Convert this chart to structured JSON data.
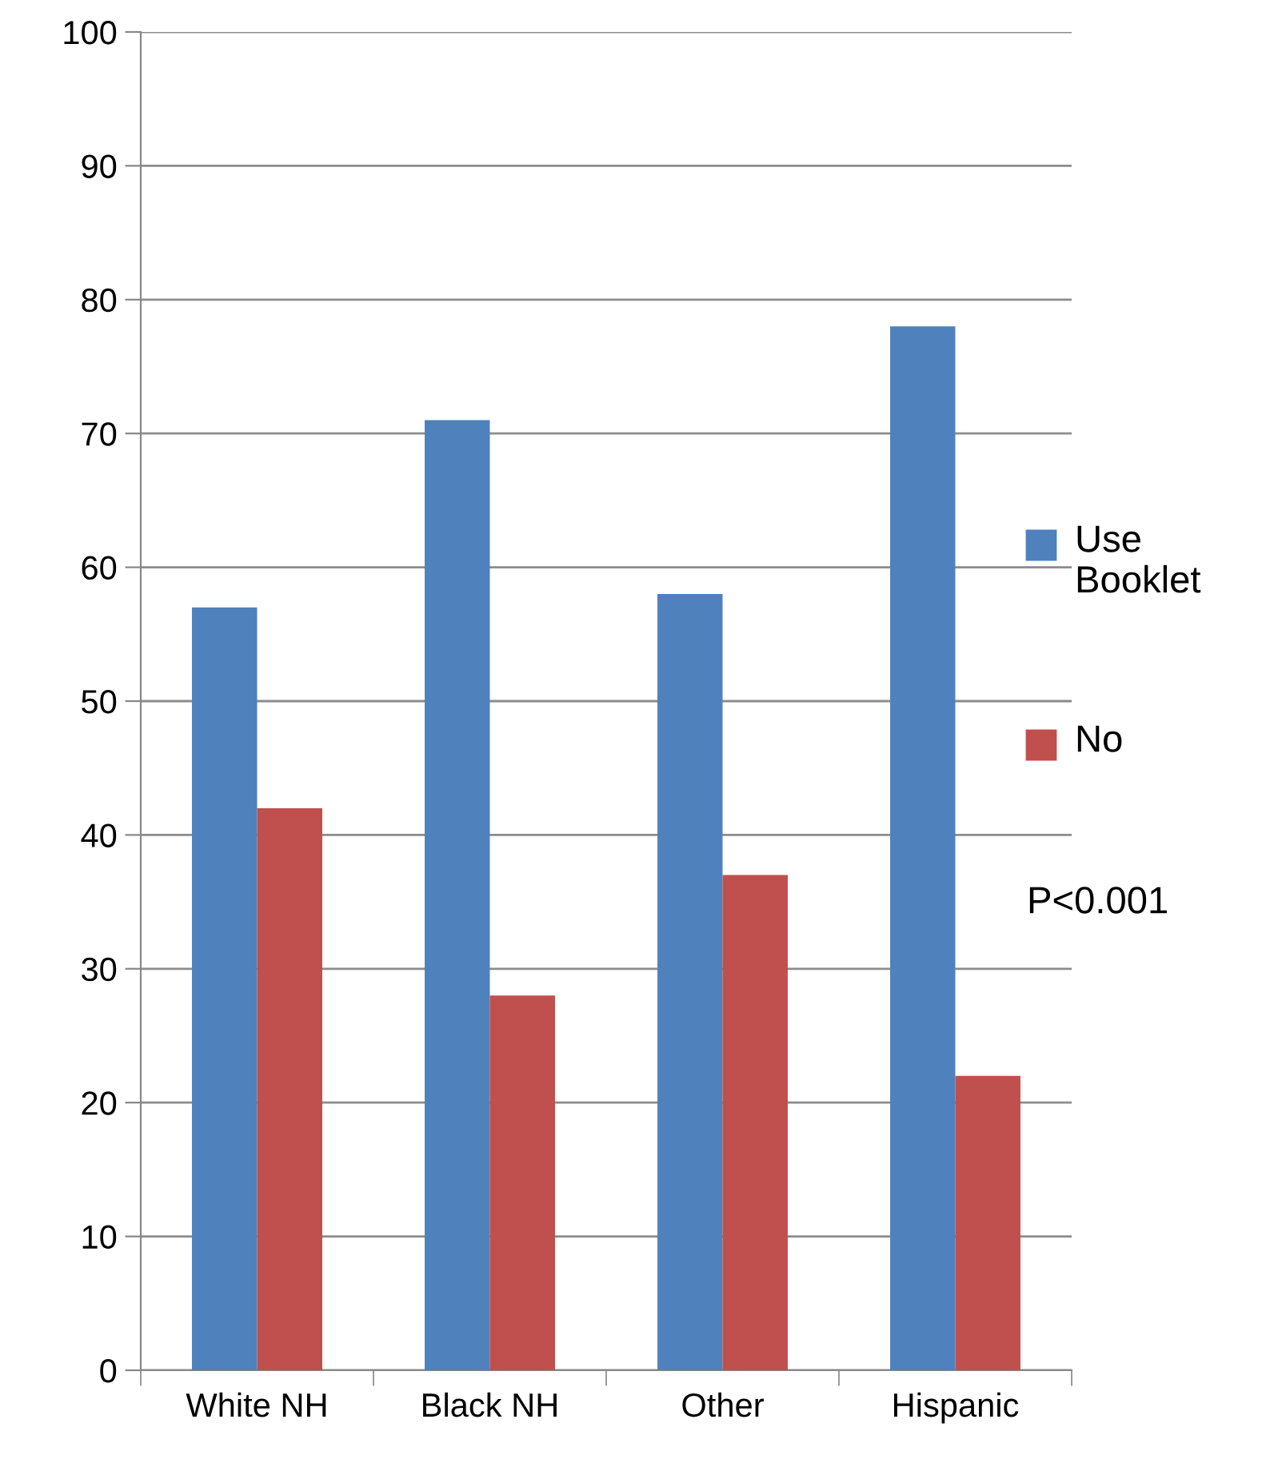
{
  "chart_data": {
    "type": "bar",
    "categories": [
      "White NH",
      "Black NH",
      "Other",
      "Hispanic"
    ],
    "series": [
      {
        "name": "Use Booklet",
        "color": "#4f81bd",
        "values": [
          57,
          71,
          58,
          78
        ]
      },
      {
        "name": "No",
        "color": "#c0504d",
        "values": [
          42,
          28,
          37,
          22
        ]
      }
    ],
    "ylim": [
      0,
      100
    ],
    "yticks": [
      0,
      10,
      20,
      30,
      40,
      50,
      60,
      70,
      80,
      90,
      100
    ],
    "grid": "y",
    "legend": "right",
    "annotations": [
      "P<0.001"
    ]
  }
}
